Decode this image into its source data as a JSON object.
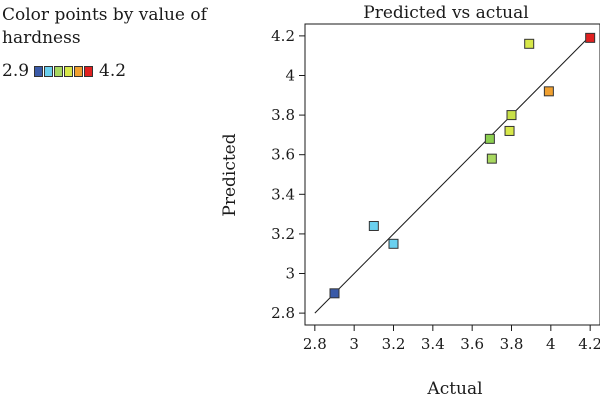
{
  "legend": {
    "title": "Color points by value of hardness",
    "min_label": "2.9",
    "max_label": "4.2",
    "colors": [
      "#3a5aa8",
      "#6ad0ef",
      "#a8d860",
      "#d8e84a",
      "#f0a030",
      "#e02020"
    ]
  },
  "chart_data": {
    "type": "scatter",
    "title": "Predicted vs actual",
    "xlabel": "Actual",
    "ylabel": "Predicted",
    "xlim": [
      2.75,
      4.25
    ],
    "ylim": [
      2.74,
      4.26
    ],
    "xticks": [
      2.8,
      3,
      3.2,
      3.4,
      3.6,
      3.8,
      4,
      4.2
    ],
    "yticks": [
      2.8,
      3,
      3.2,
      3.4,
      3.6,
      3.8,
      4,
      4.2
    ],
    "tick_labels_x": [
      "2.8",
      "3",
      "3.2",
      "3.4",
      "3.6",
      "3.8",
      "4",
      "4.2"
    ],
    "tick_labels_y": [
      "2.8",
      "3",
      "3.2",
      "3.4",
      "3.6",
      "3.8",
      "4",
      "4.2"
    ],
    "reference_line": [
      [
        2.8,
        2.8
      ],
      [
        4.2,
        4.2
      ]
    ],
    "grid": false,
    "points": [
      {
        "x": 2.9,
        "y": 2.9,
        "color": "#3a5aa8"
      },
      {
        "x": 3.1,
        "y": 3.24,
        "color": "#6ad0ef"
      },
      {
        "x": 3.2,
        "y": 3.15,
        "color": "#6ad0ef"
      },
      {
        "x": 3.69,
        "y": 3.68,
        "color": "#8ccf50"
      },
      {
        "x": 3.7,
        "y": 3.58,
        "color": "#a8d860"
      },
      {
        "x": 3.79,
        "y": 3.72,
        "color": "#d8e84a"
      },
      {
        "x": 3.8,
        "y": 3.8,
        "color": "#c8e048"
      },
      {
        "x": 3.89,
        "y": 4.16,
        "color": "#d8e84a"
      },
      {
        "x": 3.99,
        "y": 3.92,
        "color": "#f0a030"
      },
      {
        "x": 4.2,
        "y": 4.19,
        "color": "#e02020"
      }
    ]
  }
}
